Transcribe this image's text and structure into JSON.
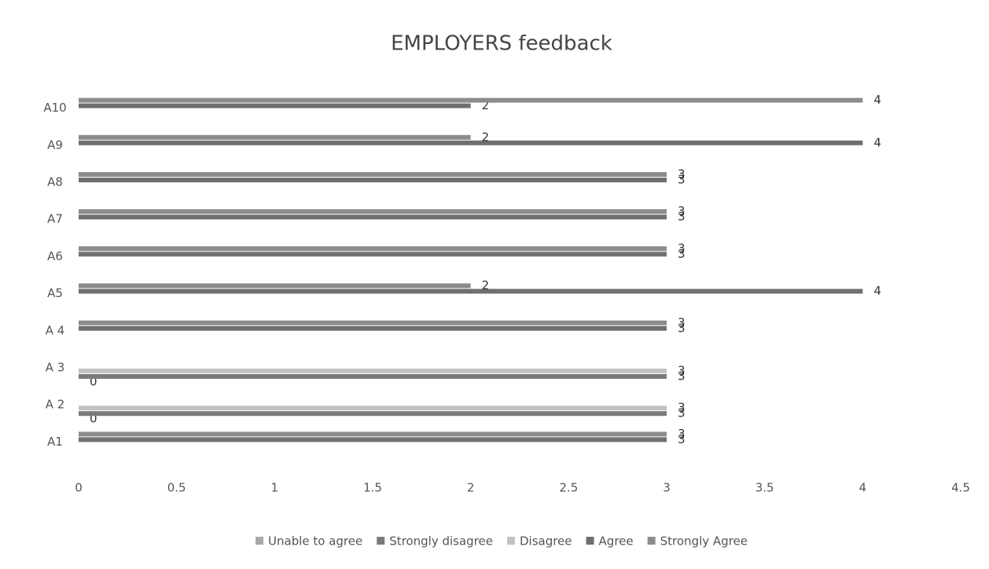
{
  "chart_data": {
    "type": "hbar",
    "title": "EMPLOYERS feedback",
    "categories": [
      "A1",
      "A 2",
      "A 3",
      "A 4",
      "A5",
      "A6",
      "A7",
      "A8",
      "A9",
      "A10"
    ],
    "series": [
      {
        "name": "Unable to agree",
        "color": "#a9a9a9",
        "values": [
          null,
          0,
          0,
          null,
          null,
          null,
          null,
          null,
          null,
          null
        ]
      },
      {
        "name": "Strongly disagree",
        "color": "#7a7a7a",
        "values": [
          null,
          3,
          3,
          null,
          null,
          null,
          null,
          null,
          null,
          null
        ]
      },
      {
        "name": "Disagree",
        "color": "#c2c2c2",
        "values": [
          null,
          3,
          3,
          null,
          null,
          null,
          null,
          null,
          null,
          null
        ]
      },
      {
        "name": "Agree",
        "color": "#6f6f6f",
        "values": [
          3,
          null,
          null,
          3,
          4,
          3,
          3,
          3,
          4,
          2
        ]
      },
      {
        "name": "Strongly Agree",
        "color": "#8c8c8c",
        "values": [
          3,
          null,
          null,
          3,
          2,
          3,
          3,
          3,
          2,
          4
        ]
      }
    ],
    "xlim": [
      0,
      4.5
    ],
    "xticks": [
      0,
      0.5,
      1,
      1.5,
      2,
      2.5,
      3,
      3.5,
      4,
      4.5
    ],
    "grid": false
  }
}
